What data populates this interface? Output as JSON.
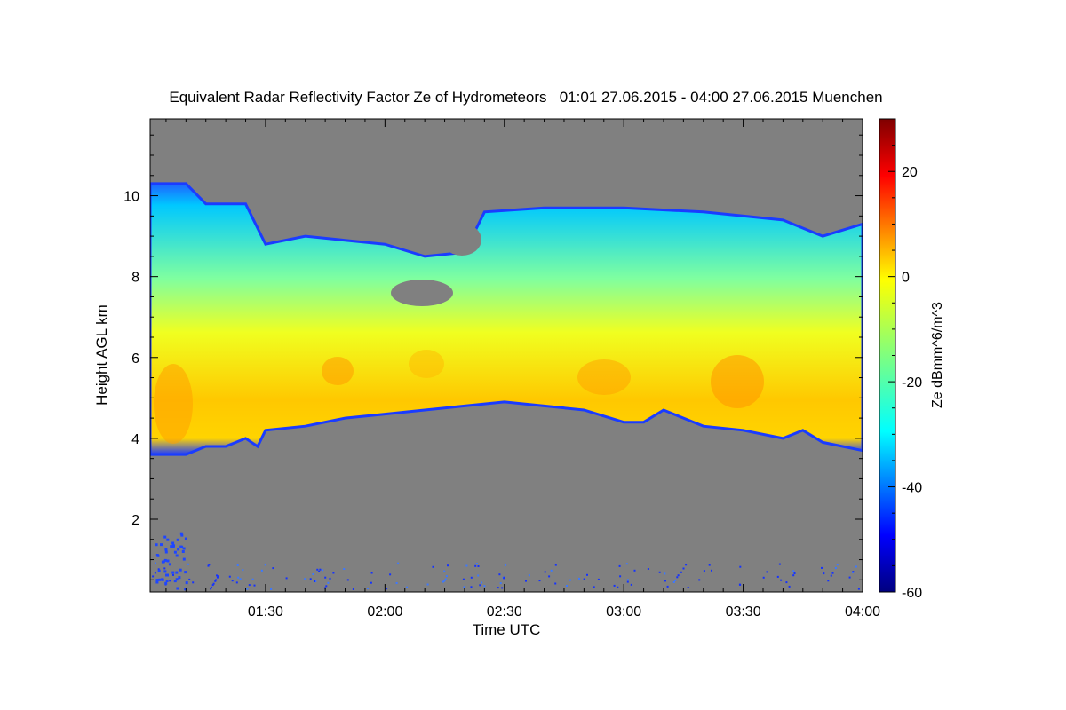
{
  "chart_data": {
    "type": "heatmap",
    "title": "Equivalent Radar Reflectivity Factor Ze of Hydrometeors   01:01 27.06.2015 - 04:00 27.06.2015 Muenchen",
    "xlabel": "Time UTC",
    "ylabel": "Height AGL km",
    "colorbar_label": "Ze dBmm^6/m^3",
    "x_range": [
      "01:01",
      "04:00"
    ],
    "y_range_km": [
      0.2,
      11.9
    ],
    "x_ticks": [
      "01:30",
      "02:00",
      "02:30",
      "03:00",
      "03:30",
      "04:00"
    ],
    "y_ticks": [
      2,
      4,
      6,
      8,
      10
    ],
    "colorbar_range": [
      -60,
      30
    ],
    "colorbar_ticks": [
      20,
      0,
      -20,
      -40,
      -60
    ],
    "colormap": "jet",
    "no_signal_color": "#808080",
    "cloud_base_km": [
      {
        "time": "01:01",
        "height": 3.6
      },
      {
        "time": "01:10",
        "height": 3.6
      },
      {
        "time": "01:15",
        "height": 3.8
      },
      {
        "time": "01:20",
        "height": 3.8
      },
      {
        "time": "01:25",
        "height": 4.0
      },
      {
        "time": "01:28",
        "height": 3.8
      },
      {
        "time": "01:30",
        "height": 4.2
      },
      {
        "time": "01:40",
        "height": 4.3
      },
      {
        "time": "01:50",
        "height": 4.5
      },
      {
        "time": "02:00",
        "height": 4.6
      },
      {
        "time": "02:10",
        "height": 4.7
      },
      {
        "time": "02:20",
        "height": 4.8
      },
      {
        "time": "02:30",
        "height": 4.9
      },
      {
        "time": "02:40",
        "height": 4.8
      },
      {
        "time": "02:50",
        "height": 4.7
      },
      {
        "time": "03:00",
        "height": 4.4
      },
      {
        "time": "03:05",
        "height": 4.4
      },
      {
        "time": "03:10",
        "height": 4.7
      },
      {
        "time": "03:20",
        "height": 4.3
      },
      {
        "time": "03:30",
        "height": 4.2
      },
      {
        "time": "03:40",
        "height": 4.0
      },
      {
        "time": "03:45",
        "height": 4.2
      },
      {
        "time": "03:50",
        "height": 3.9
      },
      {
        "time": "04:00",
        "height": 3.7
      }
    ],
    "cloud_top_km": [
      {
        "time": "01:01",
        "height": 10.3
      },
      {
        "time": "01:10",
        "height": 10.3
      },
      {
        "time": "01:15",
        "height": 9.8
      },
      {
        "time": "01:25",
        "height": 9.8
      },
      {
        "time": "01:30",
        "height": 8.8
      },
      {
        "time": "01:40",
        "height": 9.0
      },
      {
        "time": "01:50",
        "height": 8.9
      },
      {
        "time": "02:00",
        "height": 8.8
      },
      {
        "time": "02:10",
        "height": 8.5
      },
      {
        "time": "02:20",
        "height": 8.6
      },
      {
        "time": "02:25",
        "height": 9.6
      },
      {
        "time": "02:40",
        "height": 9.7
      },
      {
        "time": "03:00",
        "height": 9.7
      },
      {
        "time": "03:20",
        "height": 9.6
      },
      {
        "time": "03:40",
        "height": 9.4
      },
      {
        "time": "03:50",
        "height": 9.0
      },
      {
        "time": "04:00",
        "height": 9.3
      }
    ],
    "max_reflectivity_layer_km": [
      4.5,
      6.5
    ]
  }
}
